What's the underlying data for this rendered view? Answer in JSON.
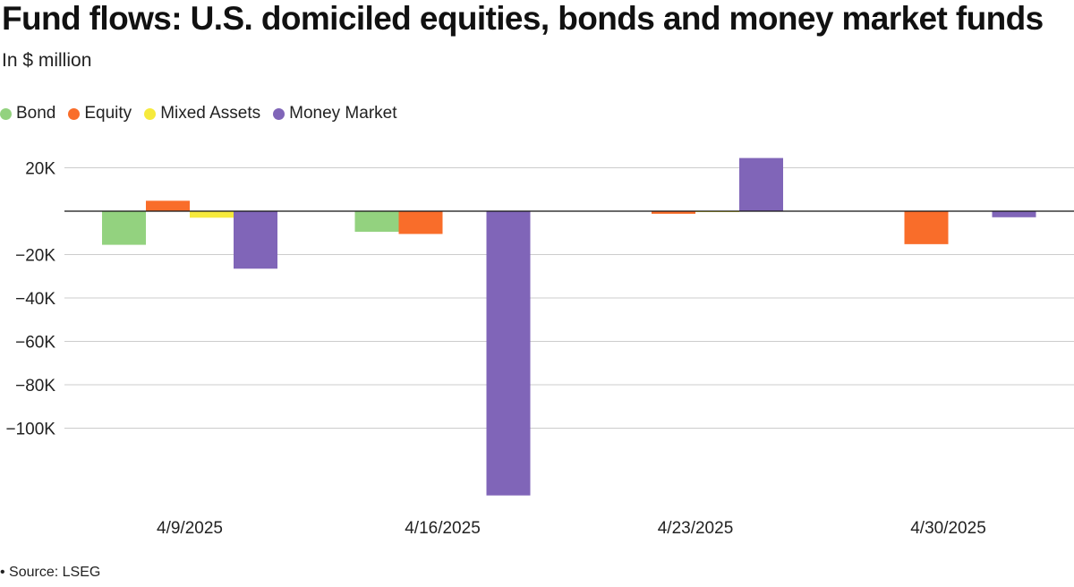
{
  "title": "Fund flows: U.S. domiciled equities, bonds and money market funds",
  "subtitle": "In $ million",
  "source": "• Source: LSEG",
  "chart_data": {
    "type": "bar",
    "categories": [
      "4/9/2025",
      "4/16/2025",
      "4/23/2025",
      "4/30/2025"
    ],
    "series": [
      {
        "name": "Bond",
        "color": "#93d27f",
        "values": [
          -15500,
          -9500,
          0,
          0
        ]
      },
      {
        "name": "Equity",
        "color": "#f96d2a",
        "values": [
          4800,
          -10500,
          -1200,
          -15200
        ]
      },
      {
        "name": "Mixed Assets",
        "color": "#f6ea3c",
        "values": [
          -3000,
          0,
          -300,
          0
        ]
      },
      {
        "name": "Money Market",
        "color": "#8065b8",
        "values": [
          -26500,
          -131000,
          24500,
          -2800
        ]
      }
    ],
    "yticks": [
      20000,
      -20000,
      -40000,
      -60000,
      -80000,
      -100000
    ],
    "ytick_labels": [
      "20K",
      "−20K",
      "−40K",
      "−60K",
      "−80K",
      "−100K"
    ],
    "ylim": [
      -135000,
      25000
    ],
    "grid": true,
    "legend_position": "top-left"
  }
}
